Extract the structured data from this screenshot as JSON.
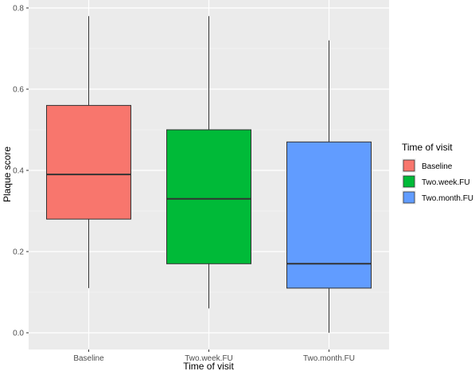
{
  "chart_data": {
    "type": "boxplot",
    "xlabel": "Time of visit",
    "ylabel": "Plaque score",
    "ylim": [
      -0.04,
      0.82
    ],
    "yticks": [
      "0.0",
      "0.2",
      "0.4",
      "0.6",
      "0.8"
    ],
    "grid": true,
    "legend": {
      "title": "Time of visit",
      "position": "right"
    },
    "categories": [
      "Baseline",
      "Two.week.FU",
      "Two.month.FU"
    ],
    "boxes": [
      {
        "name": "Baseline",
        "whisker_low": 0.11,
        "q1": 0.28,
        "median": 0.39,
        "q3": 0.56,
        "whisker_high": 0.78,
        "color": "#F8766D"
      },
      {
        "name": "Two.week.FU",
        "whisker_low": 0.06,
        "q1": 0.17,
        "median": 0.33,
        "q3": 0.5,
        "whisker_high": 0.78,
        "color": "#00BA38"
      },
      {
        "name": "Two.month.FU",
        "whisker_low": 0.0,
        "q1": 0.11,
        "median": 0.17,
        "q3": 0.47,
        "whisker_high": 0.72,
        "color": "#619CFF"
      }
    ]
  }
}
